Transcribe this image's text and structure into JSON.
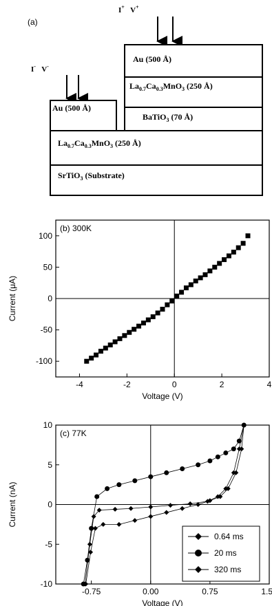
{
  "figure_a": {
    "panel_label": "(a)",
    "top_contacts": {
      "i_base": "I",
      "i_sign": "+",
      "v_base": "V",
      "v_sign": "+"
    },
    "left_contacts": {
      "i_base": "I",
      "i_sign": "-",
      "v_base": "V",
      "v_sign": "-"
    },
    "layers": {
      "au_top": "Au (500 Å)",
      "lcmo_top": {
        "a": "La",
        "b": "0.7",
        "c": "Ca",
        "d": "0.3",
        "e": "MnO",
        "f": "3",
        "g": " (250 Å)"
      },
      "bto": {
        "a": "BaTiO",
        "b": "3",
        "c": " (70 Å)"
      },
      "au_left": "Au (500 Å)",
      "lcmo_bottom": {
        "a": "La",
        "b": "0.7",
        "c": "Ca",
        "d": "0.3",
        "e": "MnO",
        "f": "3",
        "g": " (250 Å)"
      },
      "sto": {
        "a": "SrTiO",
        "b": "3",
        "c": " (Substrate)"
      }
    }
  },
  "chart_data": [
    {
      "type": "line",
      "panel_label": "(b) 300K",
      "xlabel": "Voltage (V)",
      "ylabel": "Current (μA)",
      "xlim": [
        -5,
        4
      ],
      "ylim": [
        -125,
        125
      ],
      "x_ticks": [
        "-4",
        "-2",
        "0",
        "2",
        "4"
      ],
      "y_ticks": [
        "100",
        "50",
        "0",
        "-50",
        "-100"
      ],
      "series": [
        {
          "marker": "square",
          "x": [
            -3.7,
            -3.5,
            -3.3,
            -3.1,
            -2.9,
            -2.7,
            -2.5,
            -2.3,
            -2.1,
            -1.9,
            -1.7,
            -1.5,
            -1.3,
            -1.1,
            -0.9,
            -0.7,
            -0.5,
            -0.3,
            -0.1,
            0.1,
            0.3,
            0.5,
            0.7,
            0.9,
            1.1,
            1.3,
            1.5,
            1.7,
            1.9,
            2.1,
            2.3,
            2.5,
            2.7,
            2.9,
            3.1
          ],
          "y": [
            -100,
            -95,
            -90,
            -84,
            -79,
            -74,
            -69,
            -64,
            -59,
            -54,
            -49,
            -44,
            -39,
            -34,
            -29,
            -23,
            -17,
            -10,
            -4,
            4,
            10,
            17,
            22,
            28,
            33,
            38,
            44,
            50,
            56,
            62,
            68,
            74,
            81,
            88,
            100
          ]
        }
      ]
    },
    {
      "type": "scatter",
      "panel_label": "(c)  77K",
      "xlabel": "Voltage (V)",
      "ylabel": "Current (nA)",
      "xlim": [
        -1.2,
        1.5
      ],
      "ylim": [
        -10,
        10
      ],
      "x_ticks": [
        "-0.75",
        "0.00",
        "0.75",
        "1.50"
      ],
      "y_ticks": [
        "10",
        "5",
        "0",
        "-5",
        "-10"
      ],
      "legend_position": "bottom-right",
      "series": [
        {
          "name": "0.64 ms",
          "marker": "diamond",
          "x": [
            -0.83,
            -0.77,
            -0.72,
            -0.65,
            -0.45,
            -0.25,
            0.0,
            0.25,
            0.5,
            0.72,
            0.85,
            0.95,
            1.05,
            1.12,
            1.18
          ],
          "y": [
            -10,
            -5,
            -1.5,
            -0.7,
            -0.6,
            -0.5,
            -0.3,
            -0.1,
            0.1,
            0.4,
            1,
            2,
            4,
            7,
            10
          ]
        },
        {
          "name": "20 ms",
          "marker": "circle",
          "x": [
            -0.85,
            -0.8,
            -0.75,
            -0.68,
            -0.55,
            -0.4,
            -0.2,
            0.0,
            0.2,
            0.4,
            0.6,
            0.75,
            0.85,
            0.95,
            1.05,
            1.12,
            1.18
          ],
          "y": [
            -10,
            -7,
            -3,
            1,
            2,
            2.5,
            3,
            3.5,
            4,
            4.5,
            5,
            5.5,
            6,
            6.5,
            7,
            8,
            10
          ]
        },
        {
          "name": "320 ms",
          "marker": "diamond",
          "x": [
            -0.82,
            -0.76,
            -0.7,
            -0.6,
            -0.4,
            -0.2,
            0.0,
            0.2,
            0.4,
            0.6,
            0.75,
            0.88,
            0.98,
            1.08,
            1.15,
            1.18
          ],
          "y": [
            -10,
            -6,
            -3,
            -2.5,
            -2.5,
            -2,
            -1.5,
            -1,
            -0.5,
            0,
            0.5,
            1,
            2,
            4,
            7,
            10
          ]
        }
      ]
    }
  ]
}
